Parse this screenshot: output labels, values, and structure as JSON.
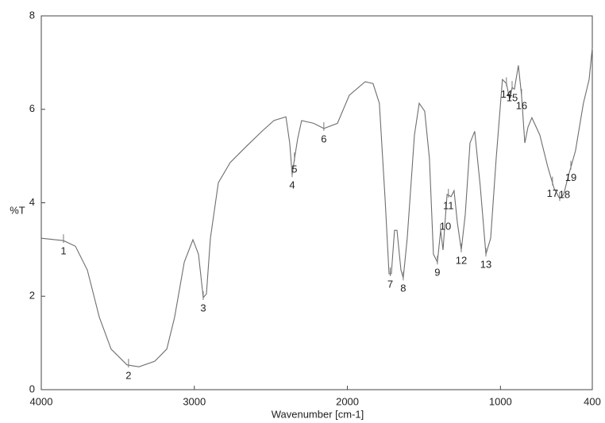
{
  "chart_data": {
    "type": "line",
    "x_label": "Wavenumber [cm-1]",
    "y_label": "%T",
    "xlim": [
      4000,
      400
    ],
    "ylim": [
      0,
      8
    ],
    "xticks": [
      4000,
      3000,
      2000,
      1000,
      400
    ],
    "yticks": [
      0,
      2,
      4,
      6,
      8
    ],
    "color": "#6e6e6e",
    "x": [
      4000,
      3855,
      3777,
      3699,
      3621,
      3544,
      3440,
      3362,
      3258,
      3180,
      3129,
      3066,
      3009,
      2973,
      2942,
      2921,
      2895,
      2843,
      2766,
      2662,
      2558,
      2480,
      2402,
      2377,
      2361,
      2346,
      2325,
      2299,
      2221,
      2154,
      2065,
      1988,
      1884,
      1832,
      1791,
      1754,
      1728,
      1713,
      1692,
      1676,
      1650,
      1635,
      1609,
      1562,
      1531,
      1495,
      1464,
      1438,
      1412,
      1391,
      1375,
      1349,
      1323,
      1303,
      1282,
      1256,
      1230,
      1199,
      1168,
      1132,
      1095,
      1064,
      1028,
      987,
      961,
      940,
      924,
      909,
      883,
      862,
      841,
      820,
      795,
      743,
      691,
      649,
      613,
      587,
      561,
      510,
      458,
      421,
      400
    ],
    "values": [
      3.24,
      3.19,
      3.07,
      2.56,
      1.55,
      0.87,
      0.53,
      0.49,
      0.61,
      0.87,
      1.55,
      2.73,
      3.21,
      2.9,
      1.97,
      2.05,
      3.24,
      4.43,
      4.86,
      5.2,
      5.53,
      5.76,
      5.84,
      5.28,
      4.6,
      4.94,
      5.37,
      5.76,
      5.7,
      5.59,
      5.7,
      6.3,
      6.59,
      6.55,
      6.13,
      4.09,
      2.48,
      2.48,
      3.41,
      3.41,
      2.56,
      2.39,
      3.24,
      5.45,
      6.13,
      5.96,
      4.94,
      2.9,
      2.73,
      3.41,
      2.99,
      4.18,
      4.13,
      4.26,
      3.58,
      2.99,
      3.75,
      5.28,
      5.53,
      4.35,
      2.9,
      3.24,
      4.94,
      6.64,
      6.55,
      6.21,
      6.47,
      6.43,
      6.94,
      6.3,
      5.28,
      5.62,
      5.82,
      5.45,
      4.77,
      4.3,
      4.09,
      4.18,
      4.52,
      5.11,
      6.13,
      6.64,
      7.32
    ],
    "annotations": [
      {
        "label": "1",
        "x": 3855
      },
      {
        "label": "2",
        "x": 3430
      },
      {
        "label": "3",
        "x": 2942
      },
      {
        "label": "4",
        "x": 2361
      },
      {
        "label": "5",
        "x": 2346
      },
      {
        "label": "6",
        "x": 2154
      },
      {
        "label": "7",
        "x": 1720
      },
      {
        "label": "8",
        "x": 1635
      },
      {
        "label": "9",
        "x": 1412
      },
      {
        "label": "10",
        "x": 1391
      },
      {
        "label": "11",
        "x": 1340
      },
      {
        "label": "12",
        "x": 1256
      },
      {
        "label": "13",
        "x": 1095
      },
      {
        "label": "14",
        "x": 961
      },
      {
        "label": "15",
        "x": 924
      },
      {
        "label": "16",
        "x": 862
      },
      {
        "label": "17",
        "x": 660
      },
      {
        "label": "18",
        "x": 613
      },
      {
        "label": "19",
        "x": 540
      }
    ]
  }
}
